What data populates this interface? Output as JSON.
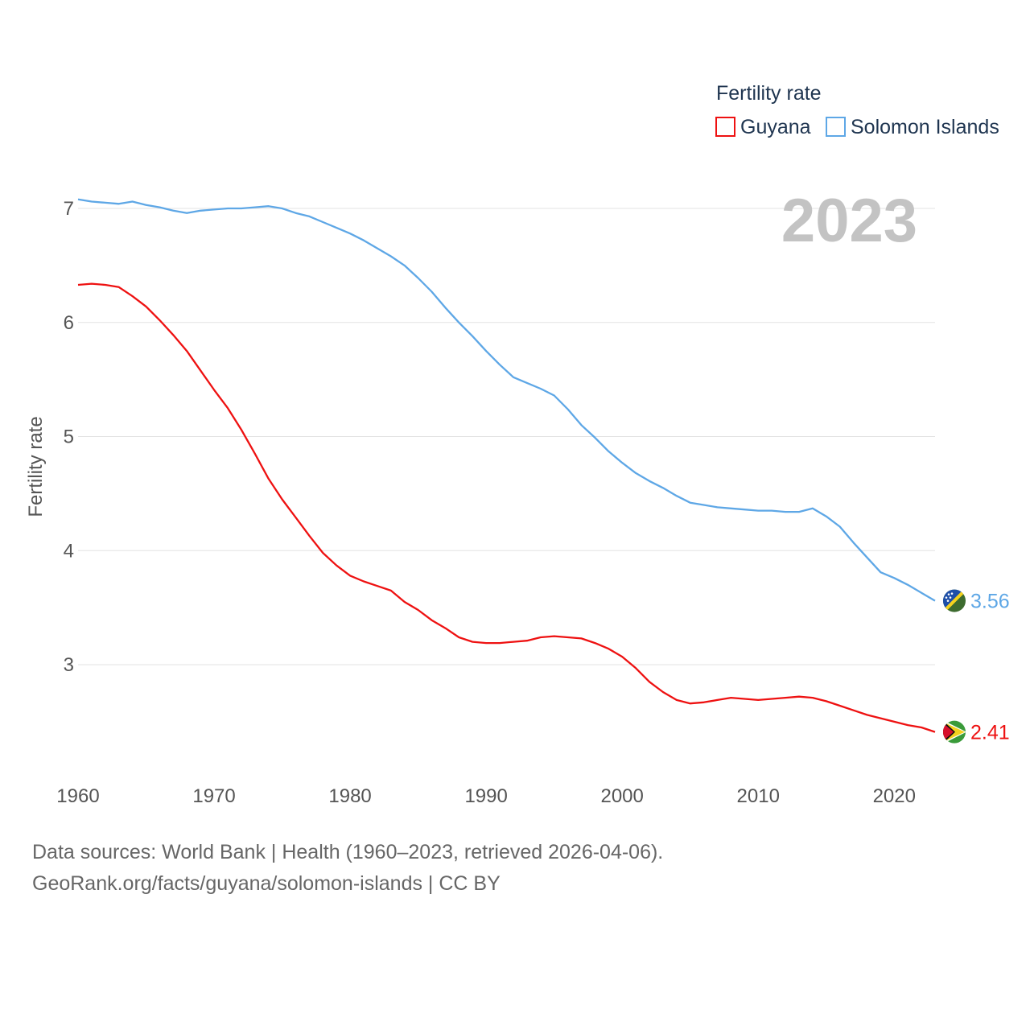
{
  "chart_data": {
    "type": "line",
    "title": "2023",
    "ylabel": "Fertility rate",
    "xlabel": "",
    "xlim": [
      1960,
      2023
    ],
    "ylim": [
      2.2,
      7.2
    ],
    "yticks": [
      3,
      4,
      5,
      6,
      7
    ],
    "xticks": [
      1960,
      1970,
      1980,
      1990,
      2000,
      2010,
      2020
    ],
    "legend_title": "Fertility rate",
    "grid": true,
    "x": [
      1960,
      1961,
      1962,
      1963,
      1964,
      1965,
      1966,
      1967,
      1968,
      1969,
      1970,
      1971,
      1972,
      1973,
      1974,
      1975,
      1976,
      1977,
      1978,
      1979,
      1980,
      1981,
      1982,
      1983,
      1984,
      1985,
      1986,
      1987,
      1988,
      1989,
      1990,
      1991,
      1992,
      1993,
      1994,
      1995,
      1996,
      1997,
      1998,
      1999,
      2000,
      2001,
      2002,
      2003,
      2004,
      2005,
      2006,
      2007,
      2008,
      2009,
      2010,
      2011,
      2012,
      2013,
      2014,
      2015,
      2016,
      2017,
      2018,
      2019,
      2020,
      2021,
      2022,
      2023
    ],
    "series": [
      {
        "name": "Guyana",
        "color": "#ee1111",
        "end_label": "2.41",
        "flag": "guyana-flag",
        "values": [
          6.33,
          6.34,
          6.33,
          6.31,
          6.23,
          6.14,
          6.02,
          5.89,
          5.75,
          5.58,
          5.41,
          5.25,
          5.06,
          4.85,
          4.63,
          4.45,
          4.29,
          4.13,
          3.98,
          3.87,
          3.78,
          3.73,
          3.69,
          3.65,
          3.55,
          3.48,
          3.39,
          3.32,
          3.24,
          3.2,
          3.19,
          3.19,
          3.2,
          3.21,
          3.24,
          3.25,
          3.24,
          3.23,
          3.19,
          3.14,
          3.07,
          2.97,
          2.85,
          2.76,
          2.69,
          2.66,
          2.67,
          2.69,
          2.71,
          2.7,
          2.69,
          2.7,
          2.71,
          2.72,
          2.71,
          2.68,
          2.64,
          2.6,
          2.56,
          2.53,
          2.5,
          2.47,
          2.45,
          2.41
        ]
      },
      {
        "name": "Solomon Islands",
        "color": "#5ea7e6",
        "end_label": "3.56",
        "flag": "solomon-islands-flag",
        "values": [
          7.08,
          7.06,
          7.05,
          7.04,
          7.06,
          7.03,
          7.01,
          6.98,
          6.96,
          6.98,
          6.99,
          7.0,
          7.0,
          7.01,
          7.02,
          7.0,
          6.96,
          6.93,
          6.88,
          6.83,
          6.78,
          6.72,
          6.65,
          6.58,
          6.5,
          6.39,
          6.27,
          6.13,
          6.0,
          5.88,
          5.75,
          5.63,
          5.52,
          5.47,
          5.42,
          5.36,
          5.24,
          5.1,
          4.99,
          4.87,
          4.77,
          4.68,
          4.61,
          4.55,
          4.48,
          4.42,
          4.4,
          4.38,
          4.37,
          4.36,
          4.35,
          4.35,
          4.34,
          4.34,
          4.37,
          4.3,
          4.21,
          4.07,
          3.94,
          3.81,
          3.76,
          3.7,
          3.63,
          3.56
        ]
      }
    ]
  },
  "source": {
    "line1": "Data sources: World Bank | Health (1960–2023, retrieved 2026-04-06).",
    "line2": "GeoRank.org/facts/guyana/solomon-islands | CC BY"
  }
}
